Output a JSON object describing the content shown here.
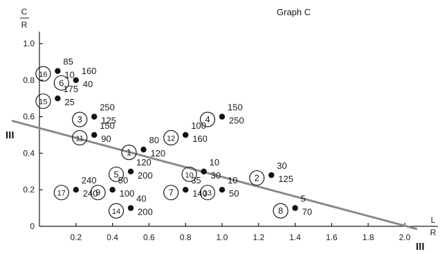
{
  "chart_data": {
    "type": "scatter",
    "title": "Graph C",
    "xlabel": {
      "num": "L",
      "den": "R"
    },
    "ylabel": {
      "num": "C",
      "den": "R"
    },
    "xlim": [
      0,
      2.2
    ],
    "ylim": [
      0,
      1.05
    ],
    "xticks": [
      "0.2",
      "0.4",
      "0.6",
      "0.8",
      "1.0",
      "1.2",
      "1.4",
      "1.6",
      "1.8",
      "2.0"
    ],
    "yticks": [
      "0",
      "0.2",
      "0.4",
      "0.6",
      "0.8",
      "1.0"
    ],
    "trend_line": {
      "label": "III",
      "from": [
        0,
        0.54
      ],
      "to": [
        2.0,
        0.0
      ]
    },
    "points": [
      {
        "id": "1",
        "x": 0.57,
        "y": 0.42,
        "labels": [
          "80",
          "120"
        ]
      },
      {
        "id": "2",
        "x": 1.27,
        "y": 0.28,
        "labels": [
          "30",
          "125"
        ]
      },
      {
        "id": "3",
        "x": 0.3,
        "y": 0.6,
        "labels": [
          "250",
          "125"
        ]
      },
      {
        "id": "4",
        "x": 1.0,
        "y": 0.6,
        "labels": [
          "150",
          "250"
        ]
      },
      {
        "id": "5",
        "x": 0.5,
        "y": 0.3,
        "labels": [
          "120",
          "200"
        ]
      },
      {
        "id": "6",
        "x": 0.2,
        "y": 0.8,
        "labels": [
          "160",
          "40"
        ]
      },
      {
        "id": "7",
        "x": 0.8,
        "y": 0.2,
        "labels": [
          "35",
          "140"
        ]
      },
      {
        "id": "8",
        "x": 1.4,
        "y": 0.1,
        "labels": [
          "5",
          "70"
        ]
      },
      {
        "id": "9",
        "x": 0.4,
        "y": 0.2,
        "labels": [
          "50",
          "100"
        ]
      },
      {
        "id": "10",
        "x": 0.9,
        "y": 0.3,
        "labels": [
          "10",
          "30"
        ]
      },
      {
        "id": "11",
        "x": 0.3,
        "y": 0.5,
        "labels": [
          "150",
          "90"
        ]
      },
      {
        "id": "12",
        "x": 0.8,
        "y": 0.5,
        "labels": [
          "100",
          "160"
        ]
      },
      {
        "id": "13",
        "x": 1.0,
        "y": 0.2,
        "labels": [
          "10",
          "50"
        ]
      },
      {
        "id": "14",
        "x": 0.5,
        "y": 0.1,
        "labels": [
          "40",
          "200"
        ]
      },
      {
        "id": "15",
        "x": 0.1,
        "y": 0.7,
        "labels": [
          "175",
          "25"
        ]
      },
      {
        "id": "16",
        "x": 0.1,
        "y": 0.85,
        "labels": [
          "85",
          "10"
        ]
      },
      {
        "id": "17",
        "x": 0.2,
        "y": 0.2,
        "labels": [
          "240",
          "240"
        ]
      }
    ]
  }
}
